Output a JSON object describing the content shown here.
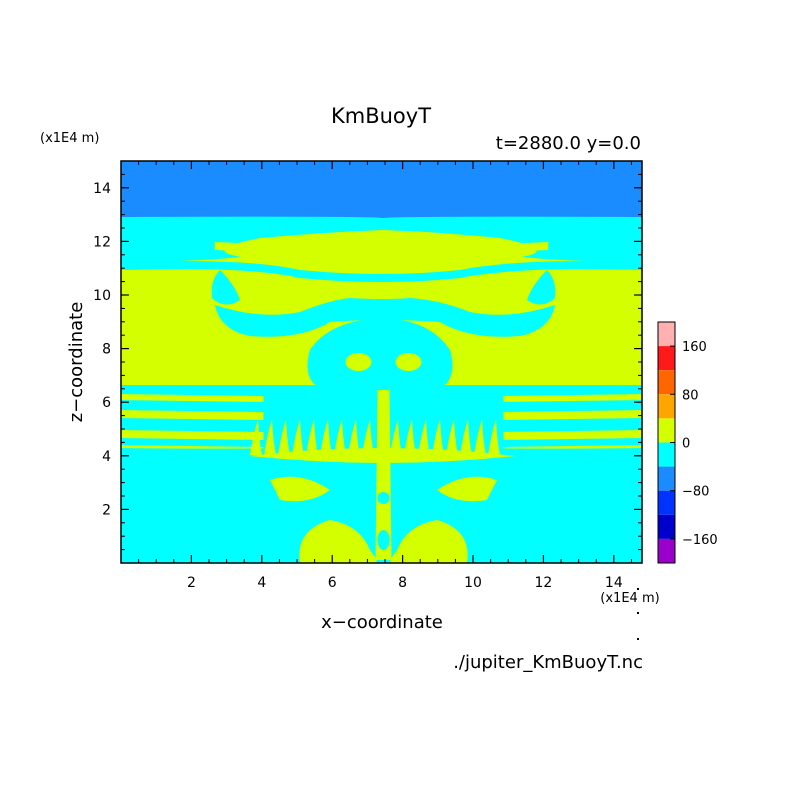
{
  "chart_data": {
    "type": "heatmap",
    "title": "KmBuoyT",
    "subtitle": "t=2880.0 y=0.0",
    "xlabel": "x−coordinate",
    "ylabel": "z−coordinate",
    "x_unit": "(x1E4 m)",
    "y_unit": "(x1E4 m)",
    "xlim": [
      0,
      14.8
    ],
    "ylim": [
      0,
      15
    ],
    "x_ticks": [
      "2",
      "4",
      "6",
      "8",
      "10",
      "12",
      "14"
    ],
    "y_ticks": [
      "2",
      "4",
      "6",
      "8",
      "10",
      "12",
      "14"
    ],
    "grid": false,
    "source": "./jupiter_KmBuoyT.nc",
    "colorbar": {
      "tick_labels": [
        "160",
        "80",
        "0",
        "−80",
        "−160"
      ],
      "levels": [
        {
          "from": 160,
          "to": 200,
          "color": "#ffb0b0"
        },
        {
          "from": 120,
          "to": 160,
          "color": "#ff1a1a"
        },
        {
          "from": 80,
          "to": 120,
          "color": "#ff6600"
        },
        {
          "from": 40,
          "to": 80,
          "color": "#ffa500"
        },
        {
          "from": 0,
          "to": 40,
          "color": "#d4ff00"
        },
        {
          "from": -40,
          "to": 0,
          "color": "#00ffff"
        },
        {
          "from": -80,
          "to": -40,
          "color": "#1a8cff"
        },
        {
          "from": -120,
          "to": -80,
          "color": "#0033ff"
        },
        {
          "from": -160,
          "to": -120,
          "color": "#0000cc"
        },
        {
          "from": -200,
          "to": -160,
          "color": "#9900cc"
        }
      ]
    },
    "field_description_values": {
      "top_layer_value_range": [
        -80,
        -40
      ],
      "background_values": [
        -40,
        0
      ]
    }
  }
}
